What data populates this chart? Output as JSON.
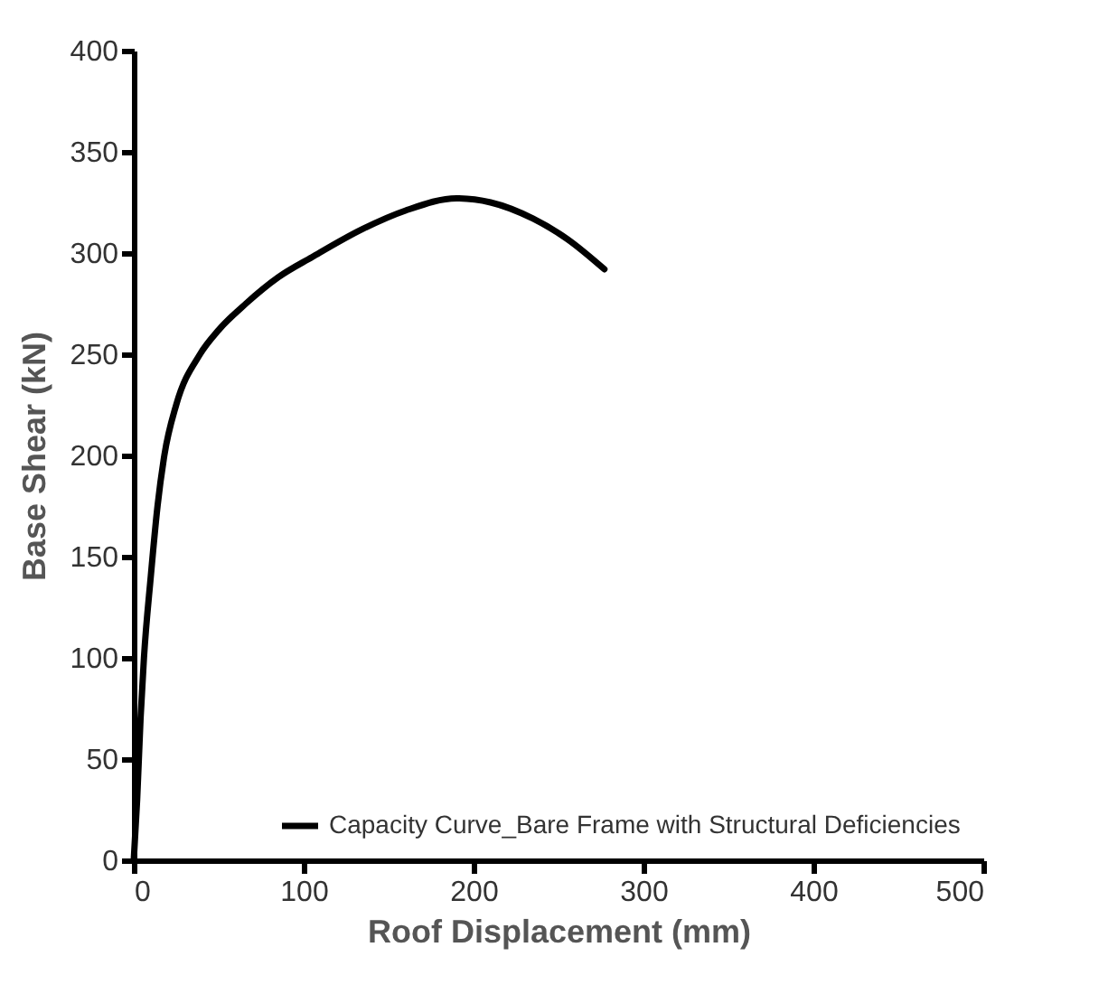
{
  "chart_data": {
    "type": "line",
    "xlabel": "Roof Displacement (mm)",
    "ylabel": "Base Shear (kN)",
    "x": [
      0,
      2,
      4,
      6,
      10,
      14,
      18,
      25,
      39,
      50,
      66,
      85,
      105,
      135,
      160,
      190,
      210,
      235,
      255,
      277
    ],
    "series": [
      {
        "name": "Capacity Curve_Bare Frame with Structural Deficiencies",
        "color": "#000000",
        "values": [
          0,
          30,
          70,
          100,
          140,
          175,
          200,
          225,
          250,
          262,
          275,
          288,
          298,
          312,
          321,
          327,
          325,
          317,
          307,
          292
        ]
      }
    ],
    "xlim": [
      0,
      500
    ],
    "xticks": [
      0,
      100,
      200,
      300,
      400,
      500
    ],
    "ylim": [
      0,
      400
    ],
    "yticks": [
      0,
      50,
      100,
      150,
      200,
      250,
      300,
      350,
      400
    ],
    "grid": false,
    "legend": "bottom right",
    "marker": "none",
    "line_style": "solid"
  }
}
